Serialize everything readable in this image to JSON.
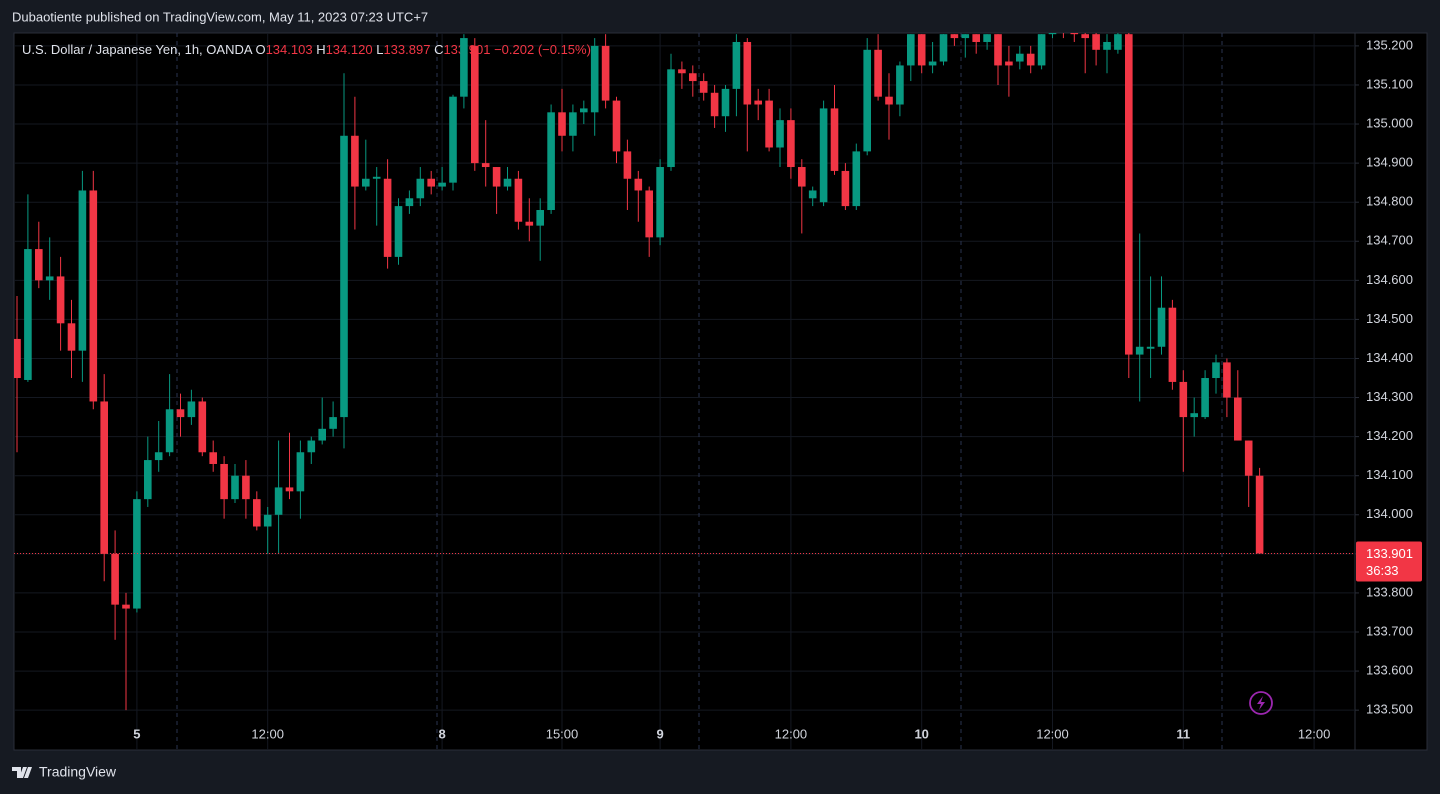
{
  "header": {
    "published": "Dubaotiente published on TradingView.com, May 11, 2023 07:23 UTC+7",
    "footer": "TradingView"
  },
  "chart_data": {
    "type": "candlestick",
    "symbol": "U.S. Dollar / Japanese Yen, 1h, OANDA",
    "ohlc_legend": [
      {
        "label": "O",
        "value": "134.103"
      },
      {
        "label": "H",
        "value": "134.120"
      },
      {
        "label": "L",
        "value": "133.897"
      },
      {
        "label": "C",
        "value": "133.901"
      }
    ],
    "change": "−0.202 (−0.15%)",
    "up_color": "#089981",
    "down_color": "#f23645",
    "categories": [
      null,
      null,
      null,
      null,
      null,
      null,
      null,
      null,
      null,
      null,
      null,
      "5",
      null,
      null,
      null,
      null,
      null,
      null,
      null,
      null,
      null,
      null,
      null,
      "12:00",
      null,
      null,
      null,
      null,
      null,
      null,
      null,
      null,
      null,
      null,
      null,
      null,
      null,
      null,
      null,
      "8",
      null,
      null,
      null,
      null,
      null,
      null,
      null,
      null,
      null,
      null,
      "15:00",
      null,
      null,
      null,
      null,
      null,
      null,
      null,
      null,
      "9",
      null,
      null,
      null,
      null,
      null,
      null,
      null,
      null,
      null,
      null,
      null,
      "12:00",
      null,
      null,
      null,
      null,
      null,
      null,
      null,
      null,
      null,
      null,
      null,
      "10",
      null,
      null,
      null,
      null,
      null,
      null,
      null,
      null,
      null,
      null,
      null,
      "12:00",
      null,
      null,
      null,
      null,
      null,
      null,
      null,
      null,
      null,
      null,
      null,
      "11",
      null,
      null,
      null,
      null,
      null,
      null,
      null,
      null,
      null,
      null,
      null,
      "12:00",
      null,
      null,
      null,
      null
    ],
    "open": [
      134.45,
      134.345,
      134.68,
      134.6,
      134.61,
      134.49,
      134.42,
      134.83,
      134.29,
      133.9,
      133.77,
      133.76,
      134.04,
      134.14,
      134.16,
      134.27,
      134.25,
      134.29,
      134.16,
      134.13,
      134.04,
      134.1,
      134.04,
      133.97,
      134.0,
      134.07,
      134.06,
      134.16,
      134.19,
      134.22,
      134.25,
      134.97,
      134.84,
      134.86,
      134.86,
      134.66,
      134.79,
      134.81,
      134.86,
      134.84,
      134.85,
      135.07,
      135.2,
      134.9,
      134.89,
      134.84,
      134.86,
      134.75,
      134.74,
      134.78,
      135.03,
      134.97,
      135.03,
      135.03,
      135.2,
      135.06,
      134.93,
      134.86,
      134.83,
      134.71,
      134.89,
      135.14,
      135.13,
      135.11,
      135.08,
      135.02,
      135.09,
      135.21,
      135.06,
      135.06,
      134.94,
      135.01,
      134.89,
      134.81,
      134.8,
      135.04,
      134.88,
      134.79,
      134.93,
      135.19,
      135.07,
      135.05,
      135.15,
      135.23,
      135.15,
      135.16,
      135.23,
      135.22,
      135.23,
      135.21,
      135.23,
      135.16,
      135.16,
      135.18,
      135.15,
      135.23,
      135.25,
      135.24,
      135.23,
      135.23,
      135.19,
      135.19,
      135.23,
      134.41,
      134.425,
      134.43,
      134.53,
      134.34,
      134.25,
      134.25,
      134.35,
      134.39,
      134.3,
      134.19,
      134.1,
      null,
      null,
      null,
      null,
      null,
      null,
      null,
      null,
      null
    ],
    "high": [
      134.56,
      134.82,
      134.75,
      134.71,
      134.66,
      134.55,
      134.88,
      134.88,
      134.36,
      133.96,
      133.8,
      134.06,
      134.2,
      134.24,
      134.36,
      134.31,
      134.32,
      134.3,
      134.19,
      134.15,
      134.13,
      134.14,
      134.06,
      134.02,
      134.19,
      134.21,
      134.19,
      134.2,
      134.3,
      134.29,
      135.13,
      135.07,
      134.96,
      134.89,
      134.91,
      134.81,
      134.83,
      134.89,
      134.88,
      134.89,
      135.075,
      135.23,
      135.22,
      135.01,
      134.89,
      134.89,
      134.88,
      134.81,
      134.81,
      135.05,
      135.09,
      135.05,
      135.06,
      135.22,
      135.23,
      135.07,
      134.96,
      134.88,
      134.84,
      134.91,
      135.18,
      135.16,
      135.15,
      135.13,
      135.1,
      135.1,
      135.23,
      135.22,
      135.09,
      135.09,
      135.04,
      135.04,
      134.91,
      134.84,
      135.06,
      135.1,
      134.9,
      134.95,
      135.22,
      135.23,
      135.13,
      135.16,
      135.23,
      135.23,
      135.21,
      135.23,
      135.23,
      135.23,
      135.23,
      135.23,
      135.23,
      135.2,
      135.2,
      135.2,
      135.23,
      135.27,
      135.27,
      135.25,
      135.25,
      135.24,
      135.23,
      135.24,
      135.24,
      134.72,
      134.61,
      134.61,
      134.55,
      134.37,
      134.3,
      134.37,
      134.41,
      134.4,
      134.37,
      134.19,
      134.12,
      null,
      null,
      null,
      null,
      null,
      null,
      null,
      null,
      null
    ],
    "low": [
      134.16,
      134.34,
      134.58,
      134.55,
      134.42,
      134.35,
      134.34,
      134.27,
      133.83,
      133.68,
      133.5,
      133.75,
      134.02,
      134.11,
      134.15,
      134.2,
      134.23,
      134.15,
      134.11,
      133.99,
      134.03,
      133.99,
      133.96,
      133.9,
      133.9,
      134.04,
      133.99,
      134.13,
      134.18,
      134.2,
      134.17,
      134.73,
      134.83,
      134.74,
      134.63,
      134.64,
      134.77,
      134.79,
      134.82,
      134.83,
      134.83,
      135.04,
      134.88,
      134.84,
      134.77,
      134.83,
      134.73,
      134.7,
      134.65,
      134.77,
      134.93,
      134.93,
      135.0,
      134.97,
      135.04,
      134.9,
      134.78,
      134.75,
      134.66,
      134.69,
      134.88,
      135.09,
      135.07,
      135.06,
      134.99,
      134.98,
      135.02,
      134.93,
      135.01,
      134.93,
      134.89,
      134.86,
      134.72,
      134.79,
      134.79,
      134.87,
      134.78,
      134.78,
      134.92,
      135.06,
      134.96,
      135.02,
      135.11,
      135.13,
      135.13,
      135.15,
      135.2,
      135.17,
      135.18,
      135.19,
      135.1,
      135.07,
      135.14,
      135.13,
      135.14,
      135.22,
      135.22,
      135.21,
      135.13,
      135.15,
      135.13,
      135.18,
      134.35,
      134.29,
      134.35,
      134.41,
      134.32,
      134.11,
      134.2,
      134.245,
      134.31,
      134.25,
      134.19,
      134.02,
      133.9,
      null,
      null,
      null,
      null,
      null,
      null,
      null,
      null,
      null
    ],
    "close": [
      134.35,
      134.68,
      134.6,
      134.61,
      134.49,
      134.42,
      134.83,
      134.29,
      133.9,
      133.77,
      133.76,
      134.04,
      134.14,
      134.16,
      134.27,
      134.25,
      134.29,
      134.16,
      134.13,
      134.04,
      134.1,
      134.04,
      133.97,
      134.0,
      134.07,
      134.06,
      134.16,
      134.19,
      134.22,
      134.25,
      134.97,
      134.84,
      134.86,
      134.865,
      134.66,
      134.79,
      134.81,
      134.86,
      134.84,
      134.85,
      135.07,
      135.22,
      134.9,
      134.89,
      134.84,
      134.86,
      134.75,
      134.74,
      134.78,
      135.03,
      134.97,
      135.03,
      135.04,
      135.2,
      135.06,
      134.93,
      134.86,
      134.83,
      134.71,
      134.89,
      135.14,
      135.13,
      135.11,
      135.08,
      135.02,
      135.09,
      135.21,
      135.05,
      135.05,
      134.94,
      135.01,
      134.89,
      134.84,
      134.83,
      135.04,
      134.88,
      134.79,
      134.93,
      135.19,
      135.07,
      135.05,
      135.15,
      135.23,
      135.15,
      135.16,
      135.23,
      135.22,
      135.23,
      135.21,
      135.23,
      135.15,
      135.15,
      135.18,
      135.15,
      135.23,
      135.25,
      135.24,
      135.23,
      135.22,
      135.19,
      135.21,
      135.23,
      134.41,
      134.43,
      134.43,
      134.53,
      134.34,
      134.25,
      134.26,
      134.35,
      134.39,
      134.3,
      134.19,
      134.1,
      133.901,
      null,
      null,
      null,
      null,
      null,
      null,
      null,
      null,
      null
    ],
    "last_price": 133.901,
    "countdown": "36:33",
    "ylim": [
      133.398,
      135.233
    ],
    "yticks": [
      {
        "value": 133.5,
        "label": "133.500"
      },
      {
        "value": 133.6,
        "label": "133.600"
      },
      {
        "value": 133.7,
        "label": "133.700"
      },
      {
        "value": 133.8,
        "label": "133.800"
      },
      {
        "value": 133.9,
        "label": "133.900"
      },
      {
        "value": 134.0,
        "label": "134.000"
      },
      {
        "value": 134.1,
        "label": "134.100"
      },
      {
        "value": 134.2,
        "label": "134.200"
      },
      {
        "value": 134.3,
        "label": "134.300"
      },
      {
        "value": 134.4,
        "label": "134.400"
      },
      {
        "value": 134.5,
        "label": "134.500"
      },
      {
        "value": 134.6,
        "label": "134.600"
      },
      {
        "value": 134.7,
        "label": "134.700"
      },
      {
        "value": 134.8,
        "label": "134.800"
      },
      {
        "value": 134.9,
        "label": "134.900"
      },
      {
        "value": 135.0,
        "label": "135.000"
      },
      {
        "value": 135.1,
        "label": "135.100"
      },
      {
        "value": 135.2,
        "label": "135.200"
      }
    ],
    "grid": true
  }
}
